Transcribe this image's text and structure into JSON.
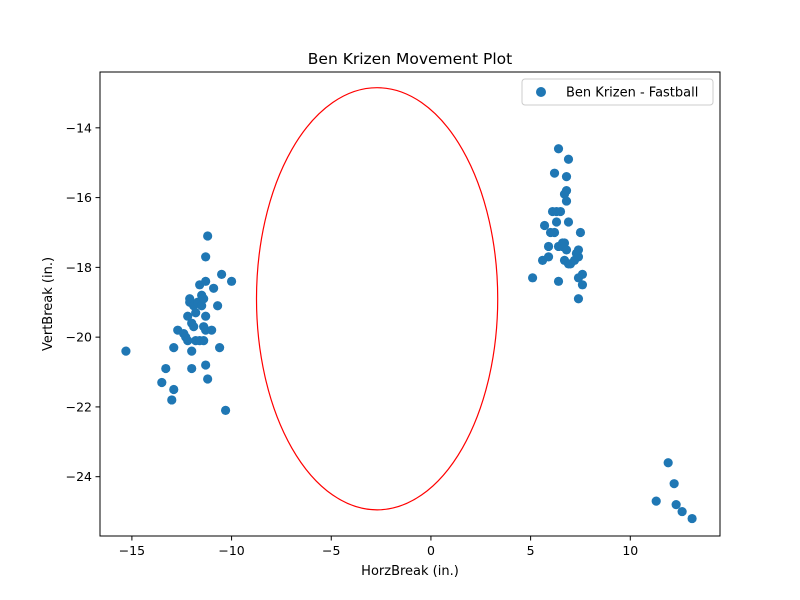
{
  "chart_data": {
    "type": "scatter",
    "title": "Ben Krizen Movement Plot",
    "xlabel": "HorzBreak (in.)",
    "ylabel": "VertBreak (in.)",
    "xlim": [
      -16.6,
      14.5
    ],
    "ylim": [
      -25.7,
      -12.4
    ],
    "xticks": [
      -15,
      -10,
      -5,
      0,
      5,
      10
    ],
    "xtick_labels": [
      "−15",
      "−10",
      "−5",
      "0",
      "5",
      "10"
    ],
    "yticks": [
      -24,
      -22,
      -20,
      -18,
      -16,
      -14
    ],
    "ytick_labels": [
      "−24",
      "−22",
      "−20",
      "−18",
      "−16",
      "−14"
    ],
    "grid": false,
    "legend_position": "top-right",
    "series": [
      {
        "name": "Ben Krizen - Fastball",
        "color": "#1f77b4",
        "points": [
          [
            -15.3,
            -20.4
          ],
          [
            -13.5,
            -21.3
          ],
          [
            -13.3,
            -20.9
          ],
          [
            -13.0,
            -21.8
          ],
          [
            -12.9,
            -21.5
          ],
          [
            -12.9,
            -20.3
          ],
          [
            -12.7,
            -19.8
          ],
          [
            -12.4,
            -19.9
          ],
          [
            -12.3,
            -20.0
          ],
          [
            -12.2,
            -19.4
          ],
          [
            -12.2,
            -20.1
          ],
          [
            -12.1,
            -19.0
          ],
          [
            -12.1,
            -18.9
          ],
          [
            -12.0,
            -19.6
          ],
          [
            -12.0,
            -20.4
          ],
          [
            -12.0,
            -20.9
          ],
          [
            -11.9,
            -19.1
          ],
          [
            -11.9,
            -19.7
          ],
          [
            -11.8,
            -20.1
          ],
          [
            -11.8,
            -19.3
          ],
          [
            -11.7,
            -19.0
          ],
          [
            -11.6,
            -18.5
          ],
          [
            -11.6,
            -20.1
          ],
          [
            -11.5,
            -18.8
          ],
          [
            -11.5,
            -19.1
          ],
          [
            -11.4,
            -18.9
          ],
          [
            -11.4,
            -19.7
          ],
          [
            -11.4,
            -20.1
          ],
          [
            -11.3,
            -17.7
          ],
          [
            -11.3,
            -18.4
          ],
          [
            -11.3,
            -20.8
          ],
          [
            -11.3,
            -19.4
          ],
          [
            -11.3,
            -19.8
          ],
          [
            -11.2,
            -17.1
          ],
          [
            -11.2,
            -21.2
          ],
          [
            -11.0,
            -19.8
          ],
          [
            -10.9,
            -18.6
          ],
          [
            -10.7,
            -19.1
          ],
          [
            -10.6,
            -20.3
          ],
          [
            -10.5,
            -18.2
          ],
          [
            -10.3,
            -22.1
          ],
          [
            -10.0,
            -18.4
          ],
          [
            5.1,
            -18.3
          ],
          [
            5.6,
            -17.8
          ],
          [
            5.7,
            -16.8
          ],
          [
            5.9,
            -17.7
          ],
          [
            5.9,
            -17.4
          ],
          [
            6.0,
            -17.0
          ],
          [
            6.1,
            -16.4
          ],
          [
            6.2,
            -15.3
          ],
          [
            6.2,
            -17.0
          ],
          [
            6.3,
            -16.4
          ],
          [
            6.3,
            -16.7
          ],
          [
            6.4,
            -14.6
          ],
          [
            6.4,
            -18.4
          ],
          [
            6.4,
            -17.4
          ],
          [
            6.5,
            -16.4
          ],
          [
            6.6,
            -17.3
          ],
          [
            6.6,
            -17.4
          ],
          [
            6.7,
            -17.3
          ],
          [
            6.7,
            -15.9
          ],
          [
            6.7,
            -17.8
          ],
          [
            6.8,
            -15.4
          ],
          [
            6.8,
            -15.8
          ],
          [
            6.8,
            -16.1
          ],
          [
            6.8,
            -17.5
          ],
          [
            6.9,
            -14.9
          ],
          [
            6.9,
            -16.7
          ],
          [
            6.9,
            -17.9
          ],
          [
            7.0,
            -17.9
          ],
          [
            7.2,
            -17.8
          ],
          [
            7.3,
            -17.6
          ],
          [
            7.4,
            -17.7
          ],
          [
            7.4,
            -18.3
          ],
          [
            7.4,
            -17.5
          ],
          [
            7.4,
            -18.9
          ],
          [
            7.5,
            -17.0
          ],
          [
            7.6,
            -18.5
          ],
          [
            7.6,
            -18.2
          ],
          [
            11.3,
            -24.7
          ],
          [
            11.9,
            -23.6
          ],
          [
            12.2,
            -24.2
          ],
          [
            12.3,
            -24.8
          ],
          [
            12.6,
            -25.0
          ],
          [
            13.1,
            -25.2
          ]
        ]
      }
    ],
    "ellipse": {
      "center": [
        -2.7,
        -18.9
      ],
      "width": 12.1,
      "height": 12.1,
      "color": "#ff0000"
    }
  }
}
